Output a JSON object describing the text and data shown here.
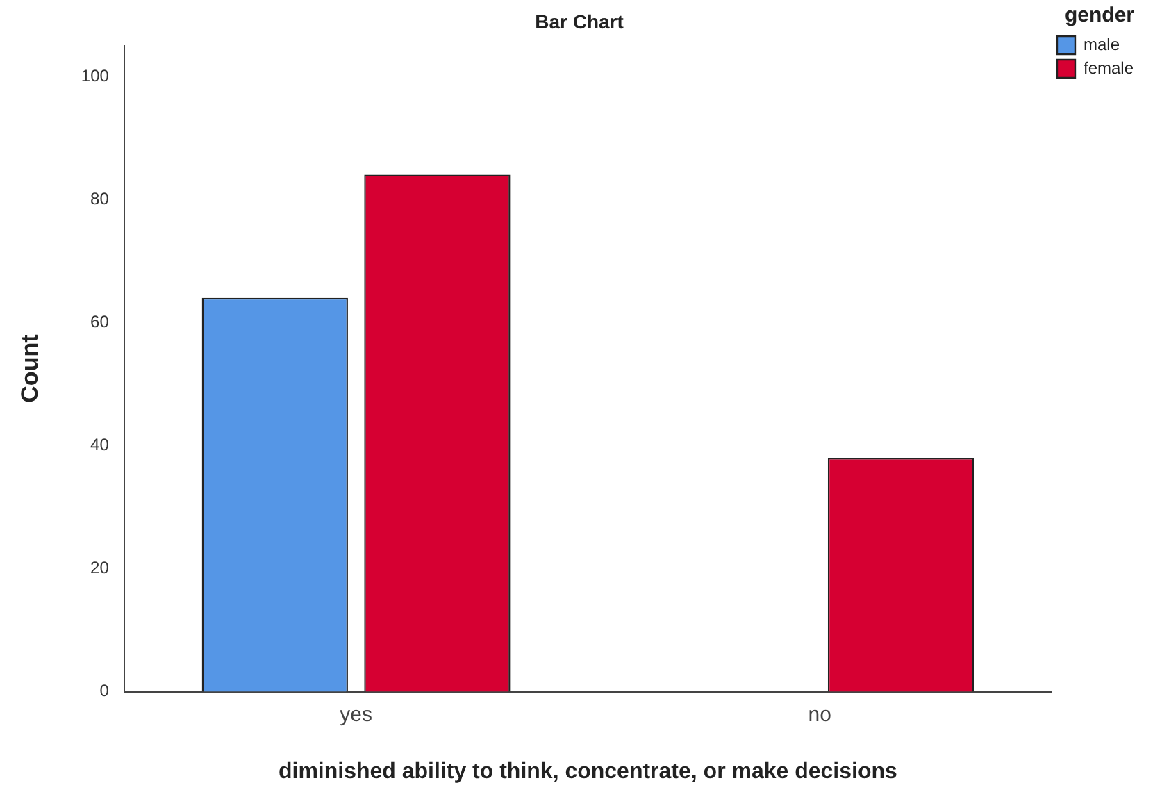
{
  "chart_data": {
    "type": "bar",
    "title": "Bar Chart",
    "xlabel": "diminished ability to think, concentrate, or make decisions",
    "ylabel": "Count",
    "legend_title": "gender",
    "categories": [
      "yes",
      "no"
    ],
    "series": [
      {
        "name": "male",
        "color": "#5596e6",
        "values": [
          64,
          null
        ]
      },
      {
        "name": "female",
        "color": "#d60032",
        "values": [
          84,
          38
        ]
      }
    ],
    "ylim": [
      0,
      105
    ],
    "yticks": [
      0,
      20,
      40,
      60,
      80,
      100
    ],
    "grid": false,
    "legend": "top right"
  }
}
